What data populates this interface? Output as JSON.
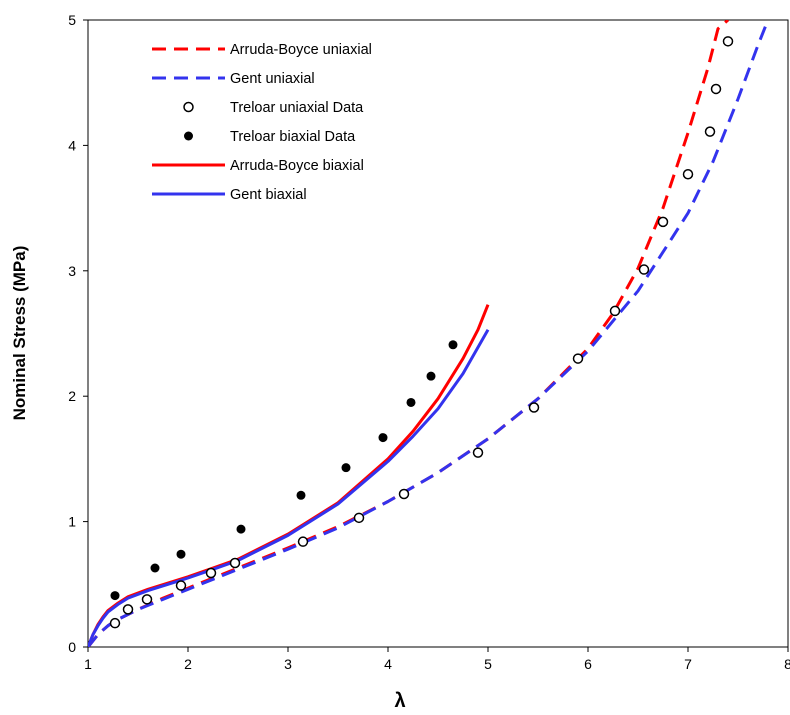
{
  "chart_data": {
    "type": "scatter",
    "title": "",
    "xlabel": "λ",
    "ylabel": "Nominal Stress (MPa)",
    "xlim": [
      1,
      8
    ],
    "ylim": [
      0,
      5
    ],
    "xticks": [
      "1",
      "2",
      "3",
      "4",
      "5",
      "6",
      "7",
      "8"
    ],
    "yticks": [
      "0",
      "1",
      "2",
      "3",
      "4",
      "5"
    ],
    "grid": false,
    "legend_position": "top-left",
    "series": [
      {
        "name": "Arruda-Boyce uniaxial",
        "kind": "line",
        "dash": "dashed",
        "color": "#ff0000",
        "x": [
          1.0,
          1.1,
          1.2,
          1.3,
          1.5,
          1.75,
          2.0,
          2.25,
          2.5,
          3.0,
          3.5,
          4.0,
          4.5,
          5.0,
          5.5,
          6.0,
          6.25,
          6.5,
          6.75,
          7.0,
          7.2,
          7.3,
          7.4
        ],
        "y": [
          0.0,
          0.1,
          0.17,
          0.22,
          0.3,
          0.39,
          0.47,
          0.55,
          0.63,
          0.79,
          0.96,
          1.16,
          1.39,
          1.66,
          1.98,
          2.38,
          2.66,
          3.02,
          3.5,
          4.1,
          4.62,
          4.93,
          5.0
        ]
      },
      {
        "name": "Gent uniaxial",
        "kind": "line",
        "dash": "dashed",
        "color": "#3333ee",
        "x": [
          1.0,
          1.1,
          1.2,
          1.3,
          1.5,
          1.75,
          2.0,
          2.25,
          2.5,
          3.0,
          3.5,
          4.0,
          4.5,
          5.0,
          5.5,
          6.0,
          6.5,
          7.0,
          7.25,
          7.5,
          7.7,
          7.8
        ],
        "y": [
          0.0,
          0.1,
          0.17,
          0.22,
          0.3,
          0.38,
          0.46,
          0.54,
          0.62,
          0.78,
          0.95,
          1.16,
          1.39,
          1.66,
          1.98,
          2.36,
          2.84,
          3.46,
          3.87,
          4.37,
          4.8,
          5.0
        ]
      },
      {
        "name": "Treloar uniaxial Data",
        "kind": "marker",
        "marker": "open-circle",
        "color": "#000000",
        "x": [
          1.27,
          1.4,
          1.59,
          1.93,
          2.23,
          2.47,
          3.15,
          3.71,
          4.16,
          4.9,
          5.46,
          5.9,
          6.27,
          6.56,
          6.75,
          7.0,
          7.22,
          7.28,
          7.4
        ],
        "y": [
          0.19,
          0.3,
          0.38,
          0.49,
          0.59,
          0.67,
          0.84,
          1.03,
          1.22,
          1.55,
          1.91,
          2.3,
          2.68,
          3.01,
          3.39,
          3.77,
          4.11,
          4.45,
          4.83
        ]
      },
      {
        "name": "Treloar biaxial Data",
        "kind": "marker",
        "marker": "filled-circle",
        "color": "#000000",
        "x": [
          1.27,
          1.67,
          1.93,
          2.53,
          3.13,
          3.58,
          3.95,
          4.23,
          4.43,
          4.65
        ],
        "y": [
          0.41,
          0.63,
          0.74,
          0.94,
          1.21,
          1.43,
          1.67,
          1.95,
          2.16,
          2.41
        ]
      },
      {
        "name": "Arruda-Boyce biaxial",
        "kind": "line",
        "dash": "solid",
        "color": "#ff0000",
        "x": [
          1.0,
          1.05,
          1.1,
          1.15,
          1.2,
          1.3,
          1.4,
          1.6,
          1.8,
          2.0,
          2.25,
          2.5,
          3.0,
          3.5,
          4.0,
          4.25,
          4.5,
          4.75,
          4.9,
          5.0
        ],
        "y": [
          0.0,
          0.1,
          0.18,
          0.24,
          0.29,
          0.35,
          0.4,
          0.46,
          0.51,
          0.56,
          0.63,
          0.7,
          0.9,
          1.15,
          1.5,
          1.72,
          1.98,
          2.3,
          2.53,
          2.73
        ]
      },
      {
        "name": "Gent biaxial",
        "kind": "line",
        "dash": "solid",
        "color": "#3333ee",
        "x": [
          1.0,
          1.05,
          1.1,
          1.15,
          1.2,
          1.3,
          1.4,
          1.6,
          1.8,
          2.0,
          2.25,
          2.5,
          3.0,
          3.5,
          4.0,
          4.25,
          4.5,
          4.75,
          5.0
        ],
        "y": [
          0.0,
          0.1,
          0.17,
          0.23,
          0.28,
          0.34,
          0.39,
          0.45,
          0.5,
          0.55,
          0.62,
          0.69,
          0.89,
          1.14,
          1.48,
          1.68,
          1.9,
          2.18,
          2.53
        ]
      }
    ]
  }
}
